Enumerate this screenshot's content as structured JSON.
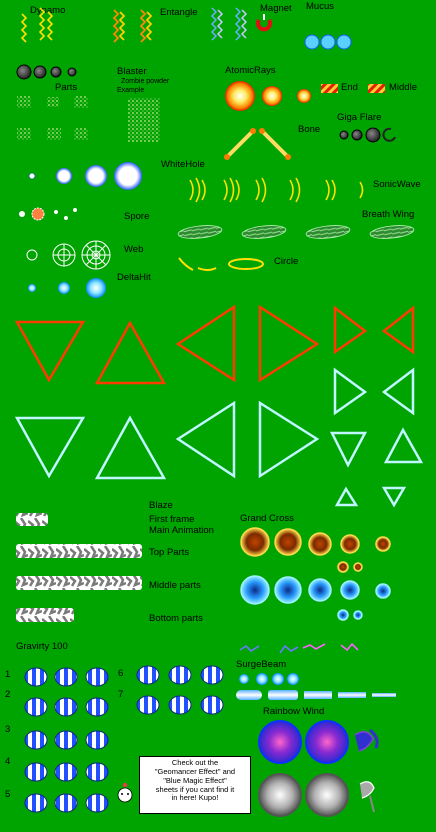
{
  "labels": {
    "dynamo": "Dynamo",
    "entangle": "Entangle",
    "magnet": "Magnet",
    "mucus": "Mucus",
    "blaster": "Blaster",
    "zombie_powder": "Zombie powder",
    "example": "Example",
    "parts": "Parts",
    "atomic_rays": "AtomicRays",
    "end": "End",
    "middle": "Middle",
    "bone": "Bone",
    "giga_flare": "Giga Flare",
    "white_hole": "WhiteHole",
    "sonic_wave": "SonicWave",
    "spore": "Spore",
    "breath_wing": "Breath Wing",
    "web": "Web",
    "circle": "Circle",
    "delta_hit": "DeltaHit",
    "blaze": "Blaze",
    "first_frame": "First frame",
    "main_animation": "Main Animation",
    "grand_cross": "Grand Cross",
    "top_parts": "Top Parts",
    "middle_parts": "Middle parts",
    "bottom_parts": "Bottom parts",
    "gravity": "Gravirty 100",
    "surge_beam": "SurgeBeam",
    "rainbow_wind": "Rainbow Wind"
  },
  "gravity_rows": [
    "1",
    "2",
    "3",
    "4",
    "5",
    "6",
    "7"
  ],
  "note": {
    "line1": "Check out the",
    "line2": "\"Geomancer Effect\" and",
    "line3": "\"Blue Magic Effect\"",
    "line4": "sheets if you cant find it",
    "line5": "in here! Kupo!"
  },
  "colors": {
    "background": "#00a400",
    "red_triangle": "#ff3b00",
    "cyan_triangle": "#bff6ff"
  }
}
